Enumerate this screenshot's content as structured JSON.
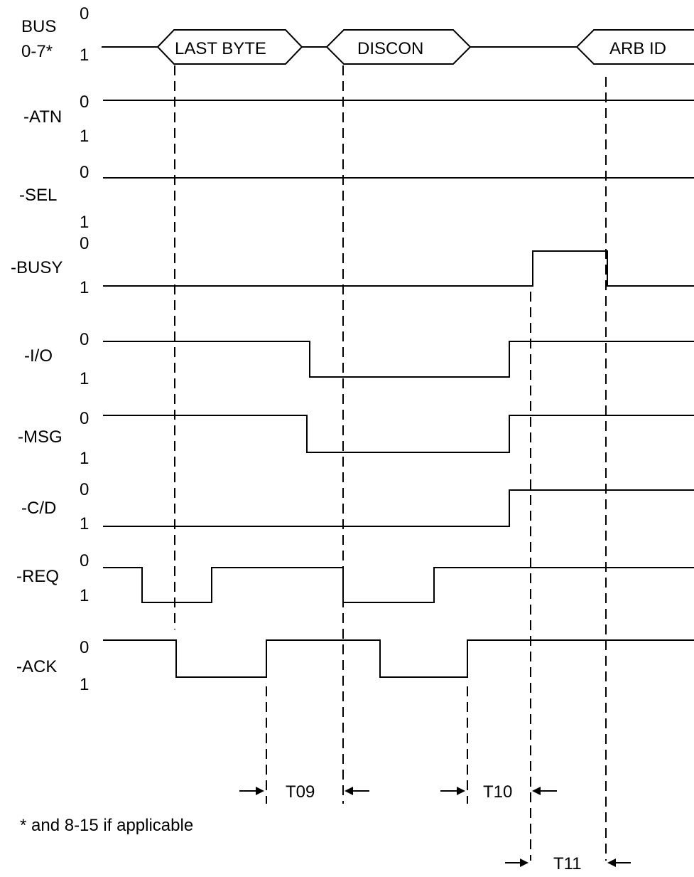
{
  "signals": [
    {
      "name": "BUS\n0-7*",
      "hi_label": "0",
      "lo_label": "1"
    },
    {
      "name": "-ATN",
      "hi_label": "0",
      "lo_label": "1"
    },
    {
      "name": "-SEL",
      "hi_label": "0",
      "lo_label": "1"
    },
    {
      "name": "-BUSY",
      "hi_label": "0",
      "lo_label": "1"
    },
    {
      "name": "-I/O",
      "hi_label": "0",
      "lo_label": "1"
    },
    {
      "name": "-MSG",
      "hi_label": "0",
      "lo_label": "1"
    },
    {
      "name": "-C/D",
      "hi_label": "0",
      "lo_label": "1"
    },
    {
      "name": "-REQ",
      "hi_label": "0",
      "lo_label": "1"
    },
    {
      "name": "-ACK",
      "hi_label": "0",
      "lo_label": "1"
    }
  ],
  "bus_phases": [
    "LAST BYTE",
    "DISCON",
    "ARB ID"
  ],
  "timings": [
    "T09",
    "T10",
    "T11"
  ],
  "footnote": "* and 8-15 if applicable"
}
